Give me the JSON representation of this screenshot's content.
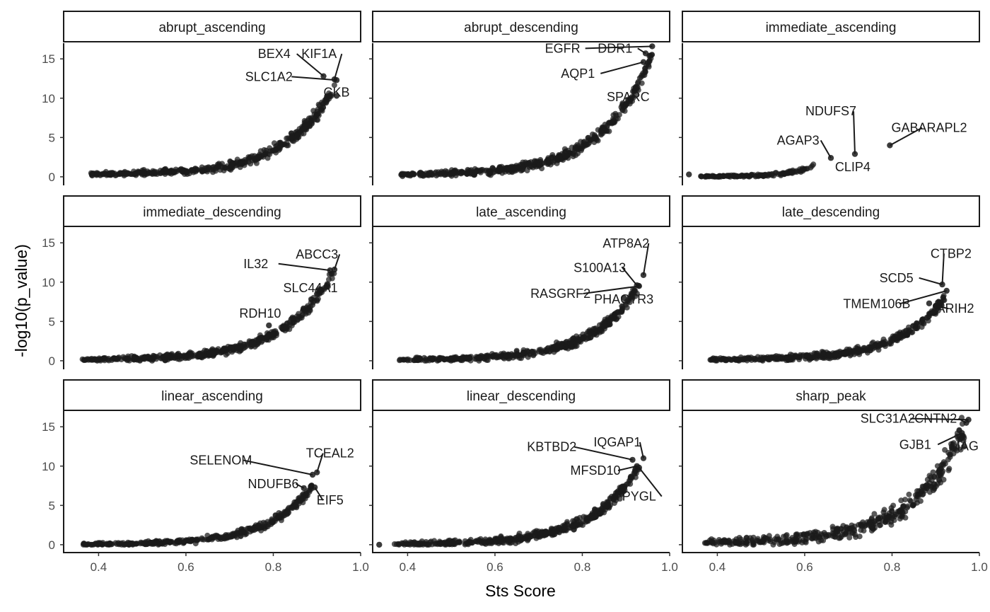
{
  "chart_data": {
    "type": "scatter",
    "facet_layout": {
      "rows": 3,
      "cols": 3
    },
    "xlabel": "Sts Score",
    "ylabel": "-log10(p_value)",
    "xlim": [
      0.32,
      1.0
    ],
    "ylim": [
      -1.0,
      17.0
    ],
    "x_ticks": [
      0.4,
      0.6,
      0.8,
      1.0
    ],
    "x_tick_labels": [
      "0.4",
      "0.6",
      "0.8",
      "1.0"
    ],
    "y_ticks": [
      0,
      5,
      10,
      15
    ],
    "y_tick_labels": [
      "0",
      "5",
      "10",
      "15"
    ],
    "point_color": "#1a1a1a",
    "grid": false,
    "facets": [
      {
        "title": "abrupt_ascending",
        "curve": {
          "x_start": 0.37,
          "x_end": 0.94,
          "y_start": 0.3,
          "y_end": 11.5,
          "n_points": 420,
          "spread": 0.55
        },
        "points": [
          [
            0.915,
            12.8
          ],
          [
            0.94,
            12.4
          ],
          [
            0.945,
            12.3
          ],
          [
            0.945,
            10.3
          ]
        ],
        "labels": [
          {
            "gene": "BEX4",
            "x": 0.915,
            "y": 12.8,
            "text_x": 0.802,
            "text_y": 15.1
          },
          {
            "gene": "KIF1A",
            "x": 0.94,
            "y": 12.4,
            "text_x": 0.905,
            "text_y": 15.1
          },
          {
            "gene": "SLC1A2",
            "x": 0.945,
            "y": 12.3,
            "text_x": 0.79,
            "text_y": 12.2
          },
          {
            "gene": "CKB",
            "x": 0.945,
            "y": 10.3,
            "text_x": 0.945,
            "text_y": 10.2
          }
        ]
      },
      {
        "title": "abrupt_descending",
        "curve": {
          "x_start": 0.38,
          "x_end": 0.96,
          "y_start": 0.3,
          "y_end": 15.5,
          "n_points": 460,
          "spread": 0.6
        },
        "points": [
          [
            0.96,
            16.6
          ],
          [
            0.945,
            15.7
          ],
          [
            0.94,
            14.6
          ],
          [
            0.92,
            11.0
          ]
        ],
        "labels": [
          {
            "gene": "EGFR",
            "x": 0.96,
            "y": 16.6,
            "text_x": 0.755,
            "text_y": 15.8
          },
          {
            "gene": "DDR1",
            "x": 0.945,
            "y": 15.7,
            "text_x": 0.875,
            "text_y": 15.8
          },
          {
            "gene": "AQP1",
            "x": 0.94,
            "y": 14.6,
            "text_x": 0.79,
            "text_y": 12.6
          },
          {
            "gene": "SPARC",
            "x": 0.92,
            "y": 11.0,
            "text_x": 0.905,
            "text_y": 9.6
          }
        ]
      },
      {
        "title": "immediate_ascending",
        "curve": {
          "x_start": 0.36,
          "x_end": 0.62,
          "y_start": 0.05,
          "y_end": 1.5,
          "n_points": 140,
          "spread": 0.18
        },
        "points": [
          [
            0.335,
            0.3
          ],
          [
            0.66,
            2.4
          ],
          [
            0.715,
            2.9
          ],
          [
            0.795,
            4.0
          ]
        ],
        "labels": [
          {
            "gene": "NDUFS7",
            "x": 0.715,
            "y": 2.9,
            "text_x": 0.66,
            "text_y": 7.8
          },
          {
            "gene": "GABARAPL2",
            "x": 0.795,
            "y": 4.0,
            "text_x": 0.885,
            "text_y": 5.7
          },
          {
            "gene": "AGAP3",
            "x": 0.66,
            "y": 2.4,
            "text_x": 0.585,
            "text_y": 4.1
          },
          {
            "gene": "CLIP4",
            "x": 0.715,
            "y": 2.9,
            "text_x": 0.71,
            "text_y": 0.7
          }
        ]
      },
      {
        "title": "immediate_descending",
        "curve": {
          "x_start": 0.36,
          "x_end": 0.94,
          "y_start": 0.15,
          "y_end": 11.5,
          "n_points": 440,
          "spread": 0.5
        },
        "points": [
          [
            0.94,
            11.6
          ],
          [
            0.93,
            11.5
          ],
          [
            0.9,
            8.5
          ],
          [
            0.79,
            4.5
          ]
        ],
        "labels": [
          {
            "gene": "ABCC3",
            "x": 0.94,
            "y": 11.6,
            "text_x": 0.9,
            "text_y": 13.0
          },
          {
            "gene": "IL32",
            "x": 0.93,
            "y": 11.5,
            "text_x": 0.76,
            "text_y": 11.8
          },
          {
            "gene": "SLC44A1",
            "x": 0.9,
            "y": 8.5,
            "text_x": 0.885,
            "text_y": 8.7
          },
          {
            "gene": "RDH10",
            "x": 0.79,
            "y": 4.5,
            "text_x": 0.77,
            "text_y": 5.5
          }
        ]
      },
      {
        "title": "late_ascending",
        "curve": {
          "x_start": 0.38,
          "x_end": 0.93,
          "y_start": 0.15,
          "y_end": 9.5,
          "n_points": 420,
          "spread": 0.5
        },
        "points": [
          [
            0.94,
            10.9
          ],
          [
            0.925,
            9.6
          ],
          [
            0.93,
            9.5
          ],
          [
            0.895,
            8.0
          ]
        ],
        "labels": [
          {
            "gene": "ATP8A2",
            "x": 0.94,
            "y": 10.9,
            "text_x": 0.9,
            "text_y": 14.4
          },
          {
            "gene": "S100A13",
            "x": 0.925,
            "y": 9.6,
            "text_x": 0.84,
            "text_y": 11.3
          },
          {
            "gene": "RASGRF2",
            "x": 0.93,
            "y": 9.5,
            "text_x": 0.75,
            "text_y": 8.0
          },
          {
            "gene": "PHACTR3",
            "x": 0.895,
            "y": 8.0,
            "text_x": 0.895,
            "text_y": 7.3
          }
        ]
      },
      {
        "title": "late_descending",
        "curve": {
          "x_start": 0.38,
          "x_end": 0.92,
          "y_start": 0.15,
          "y_end": 8.0,
          "n_points": 420,
          "spread": 0.45
        },
        "points": [
          [
            0.915,
            9.7
          ],
          [
            0.925,
            8.9
          ],
          [
            0.885,
            7.3
          ],
          [
            0.9,
            7.0
          ]
        ],
        "labels": [
          {
            "gene": "CTBP2",
            "x": 0.915,
            "y": 9.7,
            "text_x": 0.935,
            "text_y": 13.1
          },
          {
            "gene": "SCD5",
            "x": 0.915,
            "y": 9.7,
            "text_x": 0.81,
            "text_y": 10.0
          },
          {
            "gene": "TMEM106B",
            "x": 0.925,
            "y": 8.9,
            "text_x": 0.765,
            "text_y": 6.7
          },
          {
            "gene": "ARIH2",
            "x": 0.9,
            "y": 7.0,
            "text_x": 0.945,
            "text_y": 6.1
          }
        ]
      },
      {
        "title": "linear_ascending",
        "curve": {
          "x_start": 0.36,
          "x_end": 0.89,
          "y_start": 0.05,
          "y_end": 7.5,
          "n_points": 360,
          "spread": 0.4
        },
        "points": [
          [
            0.9,
            9.2
          ],
          [
            0.89,
            8.9
          ],
          [
            0.87,
            7.2
          ],
          [
            0.895,
            7.3
          ]
        ],
        "labels": [
          {
            "gene": "TCEAL2",
            "x": 0.9,
            "y": 9.2,
            "text_x": 0.93,
            "text_y": 11.1
          },
          {
            "gene": "SELENOM",
            "x": 0.89,
            "y": 8.9,
            "text_x": 0.68,
            "text_y": 10.2
          },
          {
            "gene": "NDUFB6",
            "x": 0.87,
            "y": 7.2,
            "text_x": 0.8,
            "text_y": 7.2
          },
          {
            "gene": "EIF5",
            "x": 0.895,
            "y": 7.3,
            "text_x": 0.93,
            "text_y": 5.1
          }
        ]
      },
      {
        "title": "linear_descending",
        "curve": {
          "x_start": 0.37,
          "x_end": 0.93,
          "y_start": 0.1,
          "y_end": 10.0,
          "n_points": 440,
          "spread": 0.5
        },
        "points": [
          [
            0.335,
            0.0
          ],
          [
            0.94,
            11.0
          ],
          [
            0.915,
            10.8
          ],
          [
            0.925,
            10.0
          ],
          [
            0.93,
            9.8
          ]
        ],
        "labels": [
          {
            "gene": "IQGAP1",
            "x": 0.94,
            "y": 11.0,
            "text_x": 0.88,
            "text_y": 12.5
          },
          {
            "gene": "KBTBD2",
            "x": 0.915,
            "y": 10.8,
            "text_x": 0.73,
            "text_y": 11.9
          },
          {
            "gene": "MFSD10",
            "x": 0.925,
            "y": 10.0,
            "text_x": 0.83,
            "text_y": 8.9
          },
          {
            "gene": "PYGL",
            "x": 0.93,
            "y": 9.8,
            "text_x": 0.93,
            "text_y": 5.6
          }
        ]
      },
      {
        "title": "sharp_peak",
        "curve": {
          "x_start": 0.37,
          "x_end": 0.97,
          "y_start": 0.3,
          "y_end": 15.5,
          "n_points": 420,
          "spread": 1.1
        },
        "points": [
          [
            0.975,
            15.9
          ],
          [
            0.97,
            15.5
          ],
          [
            0.96,
            14.2
          ],
          [
            0.965,
            12.5
          ]
        ],
        "labels": [
          {
            "gene": "SLC31A2",
            "x": 0.975,
            "y": 15.9,
            "text_x": 0.79,
            "text_y": 15.5
          },
          {
            "gene": "CNTN2",
            "x": 0.97,
            "y": 15.5,
            "text_x": 0.9,
            "text_y": 15.5
          },
          {
            "gene": "GJB1",
            "x": 0.96,
            "y": 14.2,
            "text_x": 0.853,
            "text_y": 12.2
          },
          {
            "gene": "MAG",
            "x": 0.965,
            "y": 12.5,
            "text_x": 0.965,
            "text_y": 12.0
          }
        ]
      }
    ]
  }
}
